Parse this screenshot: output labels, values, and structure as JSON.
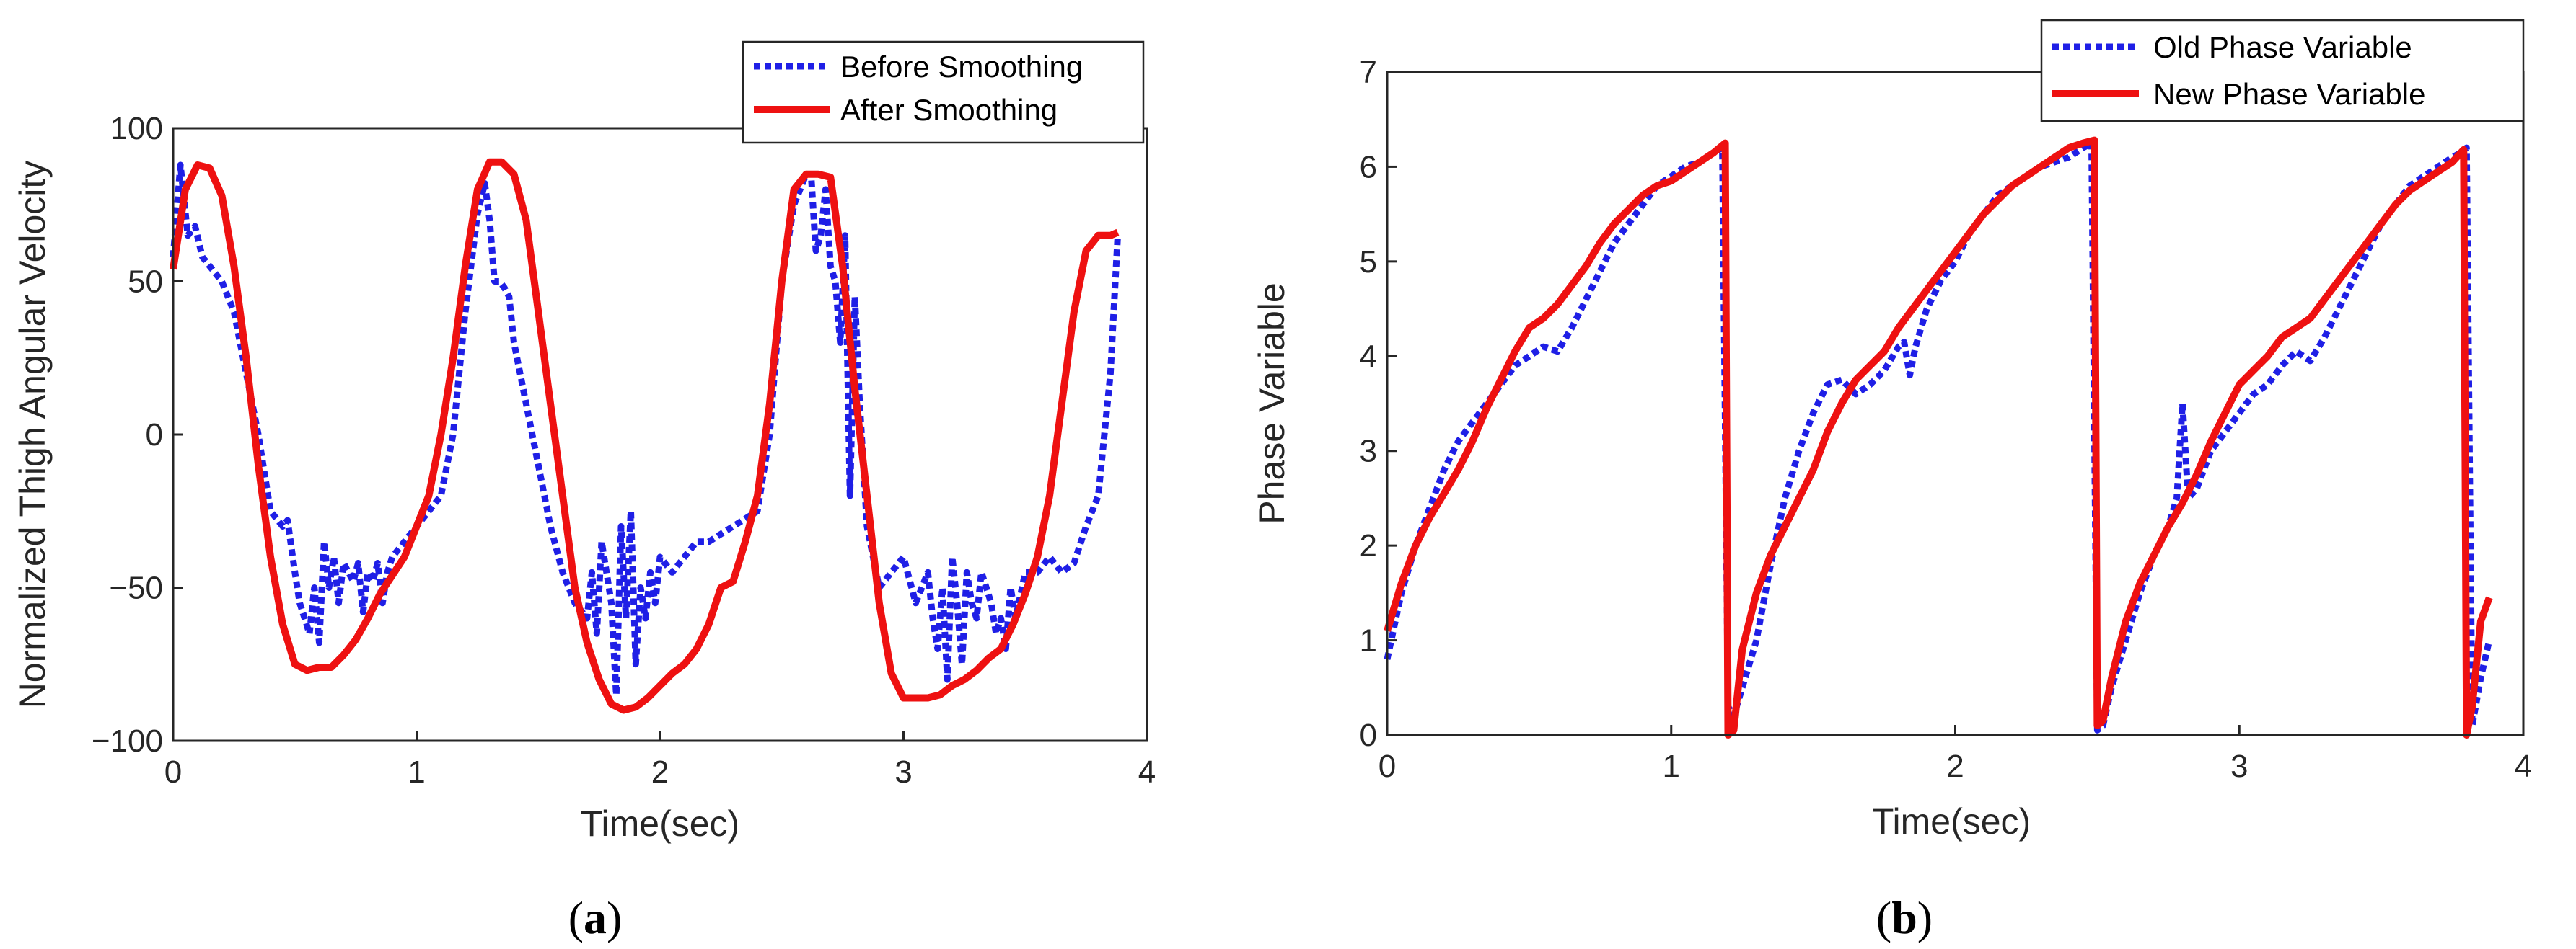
{
  "colors": {
    "blue": "#1f1fe6",
    "red": "#ee1111",
    "axis": "#262626"
  },
  "chart_data": [
    {
      "type": "line",
      "caption_open": "(",
      "caption_letter": "a",
      "caption_close": ")",
      "xlabel": "Time(sec)",
      "ylabel": "Normalized Thigh Angular Velocity",
      "xlim": [
        0,
        4
      ],
      "ylim": [
        -100,
        100
      ],
      "xticks": [
        0,
        1,
        2,
        3,
        4
      ],
      "yticks": [
        -100,
        -50,
        0,
        50,
        100
      ],
      "xtick_labels": [
        "0",
        "1",
        "2",
        "3",
        "4"
      ],
      "ytick_labels": [
        "−100",
        "−50",
        "0",
        "50",
        "100"
      ],
      "legend_position": "top-right",
      "series": [
        {
          "name": "Before Smoothing",
          "style": "dotted",
          "color": "#1f1fe6",
          "x": [
            0,
            0.03,
            0.06,
            0.09,
            0.12,
            0.15,
            0.2,
            0.25,
            0.3,
            0.35,
            0.4,
            0.45,
            0.47,
            0.5,
            0.52,
            0.54,
            0.56,
            0.58,
            0.6,
            0.62,
            0.64,
            0.66,
            0.68,
            0.7,
            0.72,
            0.74,
            0.76,
            0.78,
            0.8,
            0.82,
            0.84,
            0.86,
            0.88,
            0.9,
            0.95,
            1.0,
            1.05,
            1.1,
            1.15,
            1.2,
            1.25,
            1.28,
            1.3,
            1.32,
            1.34,
            1.36,
            1.38,
            1.4,
            1.45,
            1.5,
            1.55,
            1.6,
            1.65,
            1.7,
            1.72,
            1.74,
            1.76,
            1.78,
            1.8,
            1.82,
            1.84,
            1.86,
            1.88,
            1.9,
            1.92,
            1.94,
            1.96,
            1.98,
            2.0,
            2.05,
            2.1,
            2.15,
            2.2,
            2.3,
            2.4,
            2.45,
            2.5,
            2.55,
            2.6,
            2.62,
            2.64,
            2.66,
            2.68,
            2.7,
            2.72,
            2.74,
            2.76,
            2.78,
            2.8,
            2.82,
            2.85,
            2.9,
            2.95,
            3.0,
            3.05,
            3.1,
            3.12,
            3.14,
            3.16,
            3.18,
            3.2,
            3.22,
            3.24,
            3.26,
            3.28,
            3.3,
            3.32,
            3.34,
            3.36,
            3.38,
            3.4,
            3.42,
            3.44,
            3.46,
            3.5,
            3.55,
            3.6,
            3.65,
            3.7,
            3.75,
            3.8,
            3.85,
            3.88
          ],
          "y": [
            58,
            88,
            65,
            68,
            58,
            55,
            50,
            40,
            20,
            0,
            -25,
            -30,
            -28,
            -45,
            -55,
            -60,
            -65,
            -50,
            -68,
            -35,
            -50,
            -40,
            -55,
            -42,
            -45,
            -48,
            -42,
            -58,
            -45,
            -48,
            -42,
            -55,
            -45,
            -40,
            -35,
            -30,
            -25,
            -20,
            0,
            40,
            72,
            82,
            70,
            50,
            50,
            48,
            45,
            30,
            10,
            -10,
            -30,
            -45,
            -55,
            -60,
            -45,
            -65,
            -35,
            -45,
            -55,
            -85,
            -30,
            -60,
            -25,
            -75,
            -50,
            -60,
            -45,
            -55,
            -40,
            -45,
            -40,
            -35,
            -35,
            -30,
            -25,
            0,
            50,
            75,
            85,
            85,
            60,
            65,
            80,
            55,
            50,
            30,
            65,
            -20,
            45,
            10,
            -30,
            -50,
            -45,
            -40,
            -55,
            -45,
            -60,
            -70,
            -50,
            -80,
            -40,
            -55,
            -75,
            -45,
            -55,
            -60,
            -45,
            -50,
            -55,
            -65,
            -60,
            -70,
            -50,
            -60,
            -45,
            -45,
            -40,
            -45,
            -42,
            -30,
            -20,
            20,
            65
          ]
        },
        {
          "name": "After Smoothing",
          "style": "solid",
          "color": "#ee1111",
          "x": [
            0,
            0.05,
            0.1,
            0.15,
            0.2,
            0.25,
            0.3,
            0.35,
            0.4,
            0.45,
            0.5,
            0.55,
            0.6,
            0.65,
            0.7,
            0.75,
            0.8,
            0.85,
            0.9,
            0.95,
            1.0,
            1.05,
            1.1,
            1.15,
            1.2,
            1.25,
            1.3,
            1.35,
            1.4,
            1.45,
            1.5,
            1.55,
            1.6,
            1.65,
            1.7,
            1.75,
            1.8,
            1.85,
            1.9,
            1.95,
            2.0,
            2.05,
            2.1,
            2.15,
            2.2,
            2.25,
            2.3,
            2.35,
            2.4,
            2.45,
            2.5,
            2.55,
            2.6,
            2.65,
            2.7,
            2.75,
            2.8,
            2.85,
            2.9,
            2.95,
            3.0,
            3.05,
            3.1,
            3.15,
            3.2,
            3.25,
            3.3,
            3.35,
            3.4,
            3.45,
            3.5,
            3.55,
            3.6,
            3.65,
            3.7,
            3.75,
            3.8,
            3.85,
            3.88
          ],
          "y": [
            54,
            80,
            88,
            87,
            78,
            55,
            25,
            -10,
            -40,
            -62,
            -75,
            -77,
            -76,
            -76,
            -72,
            -67,
            -60,
            -52,
            -46,
            -40,
            -30,
            -20,
            0,
            25,
            55,
            80,
            89,
            89,
            85,
            70,
            40,
            10,
            -20,
            -50,
            -68,
            -80,
            -88,
            -90,
            -89,
            -86,
            -82,
            -78,
            -75,
            -70,
            -62,
            -50,
            -48,
            -35,
            -20,
            10,
            50,
            80,
            85,
            85,
            84,
            55,
            15,
            -20,
            -55,
            -78,
            -86,
            -86,
            -86,
            -85,
            -82,
            -80,
            -77,
            -73,
            -70,
            -62,
            -52,
            -40,
            -20,
            10,
            40,
            60,
            65,
            65,
            66
          ]
        }
      ]
    },
    {
      "type": "line",
      "caption_open": "(",
      "caption_letter": "b",
      "caption_close": ")",
      "xlabel": "Time(sec)",
      "ylabel": "Phase Variable",
      "xlim": [
        0,
        4
      ],
      "ylim": [
        0,
        7
      ],
      "xticks": [
        0,
        1,
        2,
        3,
        4
      ],
      "yticks": [
        0,
        1,
        2,
        3,
        4,
        5,
        6,
        7
      ],
      "xtick_labels": [
        "0",
        "1",
        "2",
        "3",
        "4"
      ],
      "ytick_labels": [
        "0",
        "1",
        "2",
        "3",
        "4",
        "5",
        "6",
        "7"
      ],
      "legend_position": "top-right",
      "series": [
        {
          "name": "Old Phase Variable",
          "style": "dotted",
          "color": "#1f1fe6",
          "x": [
            0,
            0.05,
            0.1,
            0.15,
            0.2,
            0.25,
            0.3,
            0.35,
            0.4,
            0.45,
            0.5,
            0.55,
            0.6,
            0.65,
            0.7,
            0.75,
            0.8,
            0.85,
            0.9,
            0.95,
            1.0,
            1.05,
            1.1,
            1.15,
            1.18,
            1.2,
            1.22,
            1.25,
            1.3,
            1.35,
            1.4,
            1.45,
            1.5,
            1.55,
            1.6,
            1.65,
            1.7,
            1.75,
            1.8,
            1.82,
            1.84,
            1.86,
            1.9,
            1.95,
            2.0,
            2.05,
            2.1,
            2.15,
            2.2,
            2.25,
            2.3,
            2.35,
            2.4,
            2.45,
            2.48,
            2.5,
            2.52,
            2.55,
            2.6,
            2.65,
            2.7,
            2.75,
            2.78,
            2.8,
            2.82,
            2.85,
            2.9,
            2.95,
            3.0,
            3.05,
            3.1,
            3.15,
            3.2,
            3.25,
            3.3,
            3.35,
            3.4,
            3.45,
            3.5,
            3.55,
            3.6,
            3.65,
            3.7,
            3.75,
            3.78,
            3.8,
            3.82,
            3.85,
            3.88
          ],
          "y": [
            0.8,
            1.5,
            2.0,
            2.4,
            2.8,
            3.1,
            3.3,
            3.5,
            3.7,
            3.9,
            4.0,
            4.1,
            4.05,
            4.3,
            4.6,
            4.9,
            5.2,
            5.4,
            5.6,
            5.8,
            5.9,
            6.0,
            6.05,
            6.15,
            6.2,
            0.3,
            0.2,
            0.5,
            1.0,
            1.8,
            2.5,
            3.0,
            3.4,
            3.7,
            3.75,
            3.6,
            3.7,
            3.85,
            4.1,
            4.15,
            3.8,
            4.1,
            4.5,
            4.8,
            5.0,
            5.3,
            5.5,
            5.7,
            5.8,
            5.9,
            6.0,
            6.05,
            6.1,
            6.2,
            6.25,
            0.05,
            0.1,
            0.5,
            1.0,
            1.5,
            1.9,
            2.2,
            2.5,
            3.5,
            2.5,
            2.6,
            3.0,
            3.2,
            3.4,
            3.6,
            3.7,
            3.9,
            4.05,
            3.95,
            4.2,
            4.5,
            4.8,
            5.1,
            5.4,
            5.6,
            5.8,
            5.9,
            6.0,
            6.1,
            6.15,
            6.2,
            0.1,
            0.6,
            1.0
          ]
        },
        {
          "name": "New Phase Variable",
          "style": "solid",
          "color": "#ee1111",
          "x": [
            0,
            0.05,
            0.1,
            0.15,
            0.2,
            0.25,
            0.3,
            0.35,
            0.4,
            0.45,
            0.5,
            0.55,
            0.6,
            0.65,
            0.7,
            0.75,
            0.8,
            0.85,
            0.9,
            0.95,
            1.0,
            1.05,
            1.1,
            1.15,
            1.19,
            1.2,
            1.22,
            1.25,
            1.3,
            1.35,
            1.4,
            1.45,
            1.5,
            1.55,
            1.6,
            1.65,
            1.7,
            1.75,
            1.8,
            1.85,
            1.9,
            1.95,
            2.0,
            2.05,
            2.1,
            2.15,
            2.2,
            2.25,
            2.3,
            2.35,
            2.4,
            2.45,
            2.49,
            2.5,
            2.52,
            2.55,
            2.6,
            2.65,
            2.7,
            2.75,
            2.8,
            2.85,
            2.9,
            2.95,
            3.0,
            3.05,
            3.1,
            3.15,
            3.2,
            3.25,
            3.3,
            3.35,
            3.4,
            3.45,
            3.5,
            3.55,
            3.6,
            3.65,
            3.7,
            3.75,
            3.79,
            3.8,
            3.82,
            3.85,
            3.88
          ],
          "y": [
            1.1,
            1.6,
            2.0,
            2.3,
            2.55,
            2.8,
            3.1,
            3.45,
            3.75,
            4.05,
            4.3,
            4.4,
            4.55,
            4.75,
            4.95,
            5.2,
            5.4,
            5.55,
            5.7,
            5.8,
            5.85,
            5.95,
            6.05,
            6.15,
            6.25,
            0.0,
            0.05,
            0.9,
            1.5,
            1.9,
            2.2,
            2.5,
            2.8,
            3.2,
            3.5,
            3.75,
            3.9,
            4.05,
            4.3,
            4.5,
            4.7,
            4.9,
            5.1,
            5.3,
            5.5,
            5.65,
            5.8,
            5.9,
            6.0,
            6.1,
            6.2,
            6.25,
            6.28,
            0.1,
            0.15,
            0.6,
            1.2,
            1.6,
            1.9,
            2.2,
            2.45,
            2.75,
            3.1,
            3.4,
            3.7,
            3.85,
            4.0,
            4.2,
            4.3,
            4.4,
            4.6,
            4.8,
            5.0,
            5.2,
            5.4,
            5.6,
            5.75,
            5.85,
            5.95,
            6.05,
            6.18,
            0.0,
            0.3,
            1.2,
            1.45
          ]
        }
      ]
    }
  ]
}
